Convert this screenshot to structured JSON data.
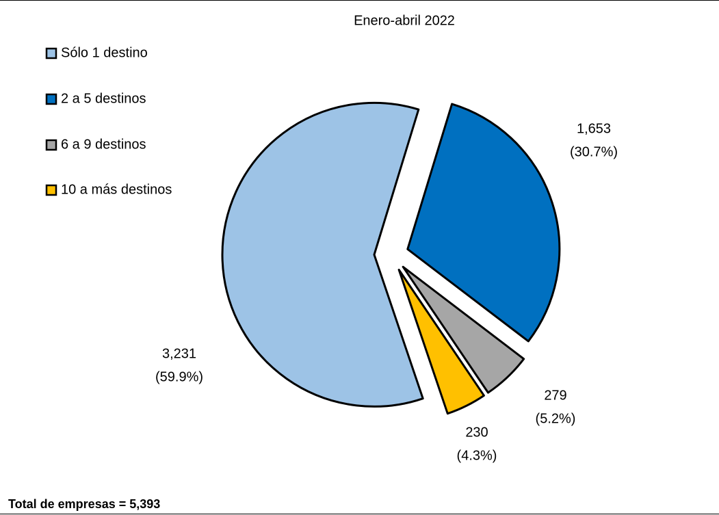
{
  "chart_data": {
    "type": "pie",
    "title": "Enero-abril 2022",
    "categories": [
      "Sólo 1 destino",
      "2 a 5 destinos",
      "6 a 9 destinos",
      "10 a más destinos"
    ],
    "values": [
      3231,
      1653,
      279,
      230
    ],
    "value_labels": [
      "3,231",
      "1,653",
      "279",
      "230"
    ],
    "percentages": [
      59.9,
      30.7,
      5.2,
      4.3
    ],
    "percentage_labels": [
      "(59.9%)",
      "(30.7%)",
      "(5.2%)",
      "(4.3%)"
    ],
    "colors": [
      "#9dc3e6",
      "#0070c0",
      "#a6a6a6",
      "#ffc000"
    ],
    "legend": "left",
    "note": "Total de empresas = 5,393"
  }
}
